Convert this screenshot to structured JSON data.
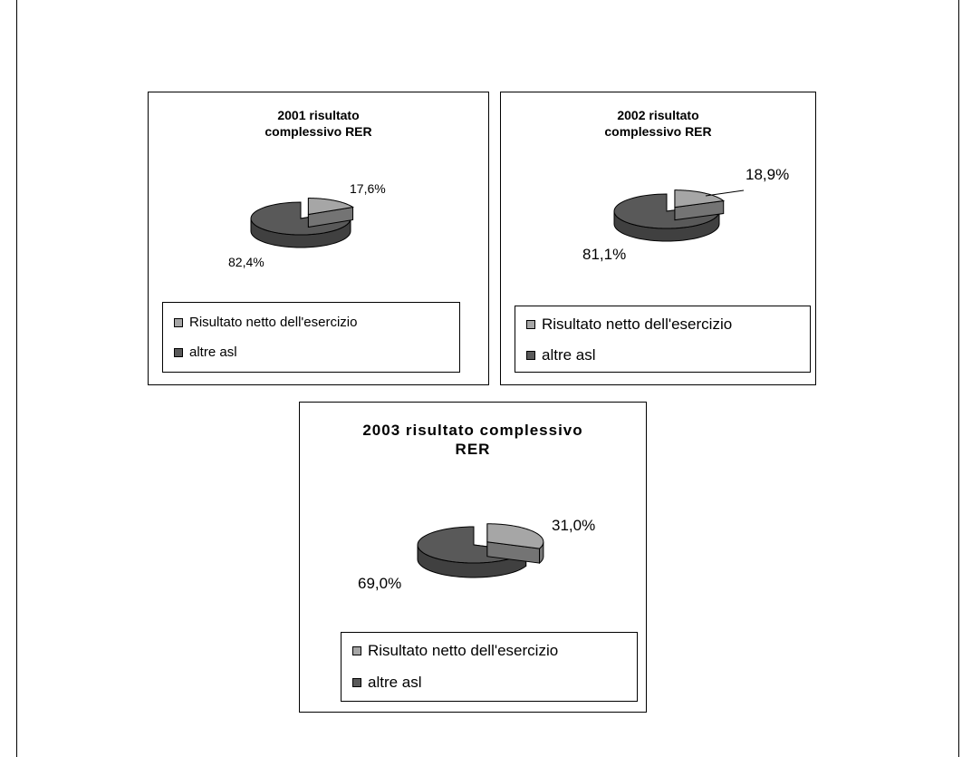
{
  "colors": {
    "light_slice": "#a6a6a6",
    "dark_slice": "#595959",
    "outline": "#000000"
  },
  "chart_data": [
    {
      "type": "pie",
      "style": "3d-exploded",
      "title": "2001 risultato complessivo RER",
      "categories": [
        "Risultato netto dell'esercizio",
        "altre asl"
      ],
      "values": [
        17.6,
        82.4
      ],
      "labels": [
        "17,6%",
        "82,4%"
      ],
      "legend_position": "bottom"
    },
    {
      "type": "pie",
      "style": "3d-exploded",
      "title": "2002 risultato complessivo RER",
      "categories": [
        "Risultato netto dell'esercizio",
        "altre asl"
      ],
      "values": [
        18.9,
        81.1
      ],
      "labels": [
        "18,9%",
        "81,1%"
      ],
      "legend_position": "bottom"
    },
    {
      "type": "pie",
      "style": "3d-exploded",
      "title": "2003 risultato complessivo RER",
      "categories": [
        "Risultato netto dell'esercizio",
        "altre asl"
      ],
      "values": [
        31.0,
        69.0
      ],
      "labels": [
        "31,0%",
        "69,0%"
      ],
      "legend_position": "bottom"
    }
  ]
}
